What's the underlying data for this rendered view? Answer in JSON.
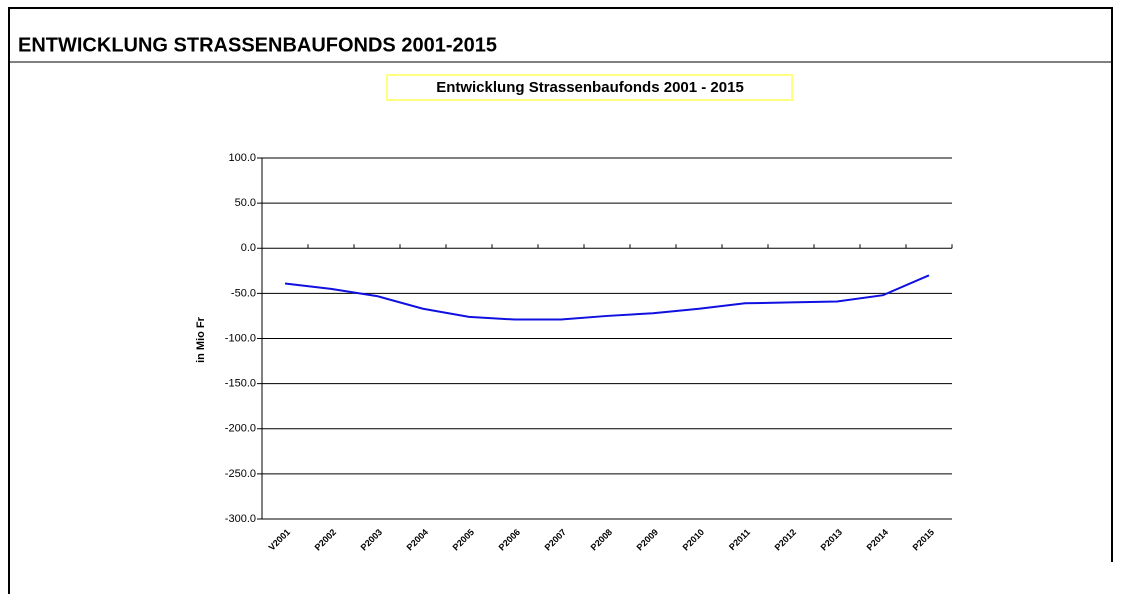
{
  "header": {
    "title": "ENTWICKLUNG STRASSENBAUFONDS 2001-2015"
  },
  "chart_data": {
    "type": "line",
    "title": "Entwicklung Strassenbaufonds 2001 - 2015",
    "y_label": "in Mio Fr",
    "categories": [
      "V2001",
      "P2002",
      "P2003",
      "P2004",
      "P2005",
      "P2006",
      "P2007",
      "P2008",
      "P2009",
      "P2010",
      "P2011",
      "P2012",
      "P2013",
      "P2014",
      "P2015"
    ],
    "series": [
      {
        "color": "#1010e0",
        "values": [
          -39,
          -45,
          -53,
          -67,
          -76,
          -79,
          -79,
          -75,
          -72,
          -67,
          -61,
          -60,
          -59,
          -52,
          -30
        ]
      }
    ],
    "ylim": [
      -300,
      100
    ],
    "yticks": [
      {
        "value": -300,
        "label": "-300.0"
      },
      {
        "value": -250,
        "label": "-250.0"
      },
      {
        "value": -200,
        "label": "-200.0"
      },
      {
        "value": -150,
        "label": "-150.0"
      },
      {
        "value": -100,
        "label": "-100.0"
      },
      {
        "value": -50,
        "label": "-50.0"
      },
      {
        "value": 0,
        "label": "0.0"
      },
      {
        "value": 50,
        "label": "50.0"
      },
      {
        "value": 100,
        "label": "100.0"
      }
    ],
    "grid": true
  }
}
